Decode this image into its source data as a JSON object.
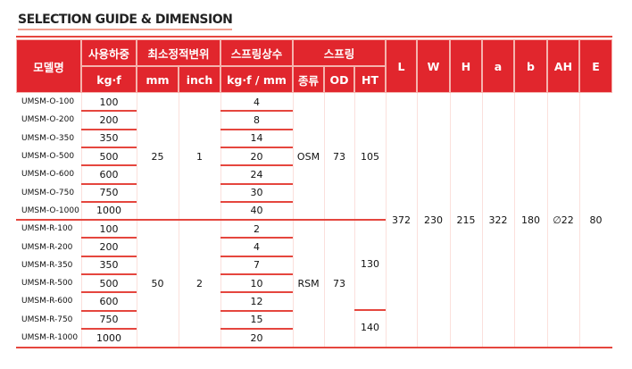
{
  "title": "SELECTION GUIDE & DIMENSION",
  "header": {
    "model": "모델명",
    "load": "사용하중",
    "load_unit": "kg·f",
    "stroke": "최소정적변위",
    "stroke_mm": "mm",
    "stroke_inch": "inch",
    "rate": "스프링상수",
    "rate_unit": "kg·f / mm",
    "spring": "스프링",
    "type": "종류",
    "od": "OD",
    "ht": "HT",
    "L": "L",
    "W": "W",
    "H": "H",
    "a": "a",
    "b": "b",
    "AH": "AH",
    "E": "E"
  },
  "rows": [
    {
      "model": "UMSM-O-100",
      "load": "100",
      "rate": "4"
    },
    {
      "model": "UMSM-O-200",
      "load": "200",
      "rate": "8"
    },
    {
      "model": "UMSM-O-350",
      "load": "350",
      "rate": "14"
    },
    {
      "model": "UMSM-O-500",
      "load": "500",
      "rate": "20"
    },
    {
      "model": "UMSM-O-600",
      "load": "600",
      "rate": "24"
    },
    {
      "model": "UMSM-O-750",
      "load": "750",
      "rate": "30"
    },
    {
      "model": "UMSM-O-1000",
      "load": "1000",
      "rate": "40"
    },
    {
      "model": "UMSM-R-100",
      "load": "100",
      "rate": "2"
    },
    {
      "model": "UMSM-R-200",
      "load": "200",
      "rate": "4"
    },
    {
      "model": "UMSM-R-350",
      "load": "350",
      "rate": "7"
    },
    {
      "model": "UMSM-R-500",
      "load": "500",
      "rate": "10"
    },
    {
      "model": "UMSM-R-600",
      "load": "600",
      "rate": "12"
    },
    {
      "model": "UMSM-R-750",
      "load": "750",
      "rate": "15"
    },
    {
      "model": "UMSM-R-1000",
      "load": "1000",
      "rate": "20"
    }
  ],
  "groups": [
    {
      "mm": "25",
      "inch": "1",
      "type": "OSM",
      "od": "73",
      "ht": [
        "105"
      ]
    },
    {
      "mm": "50",
      "inch": "2",
      "type": "RSM",
      "od": "73",
      "ht": [
        "130",
        "140"
      ]
    }
  ],
  "dims": {
    "L": "372",
    "W": "230",
    "H": "215",
    "a": "322",
    "b": "180",
    "AH": "∅22",
    "E": "80"
  }
}
